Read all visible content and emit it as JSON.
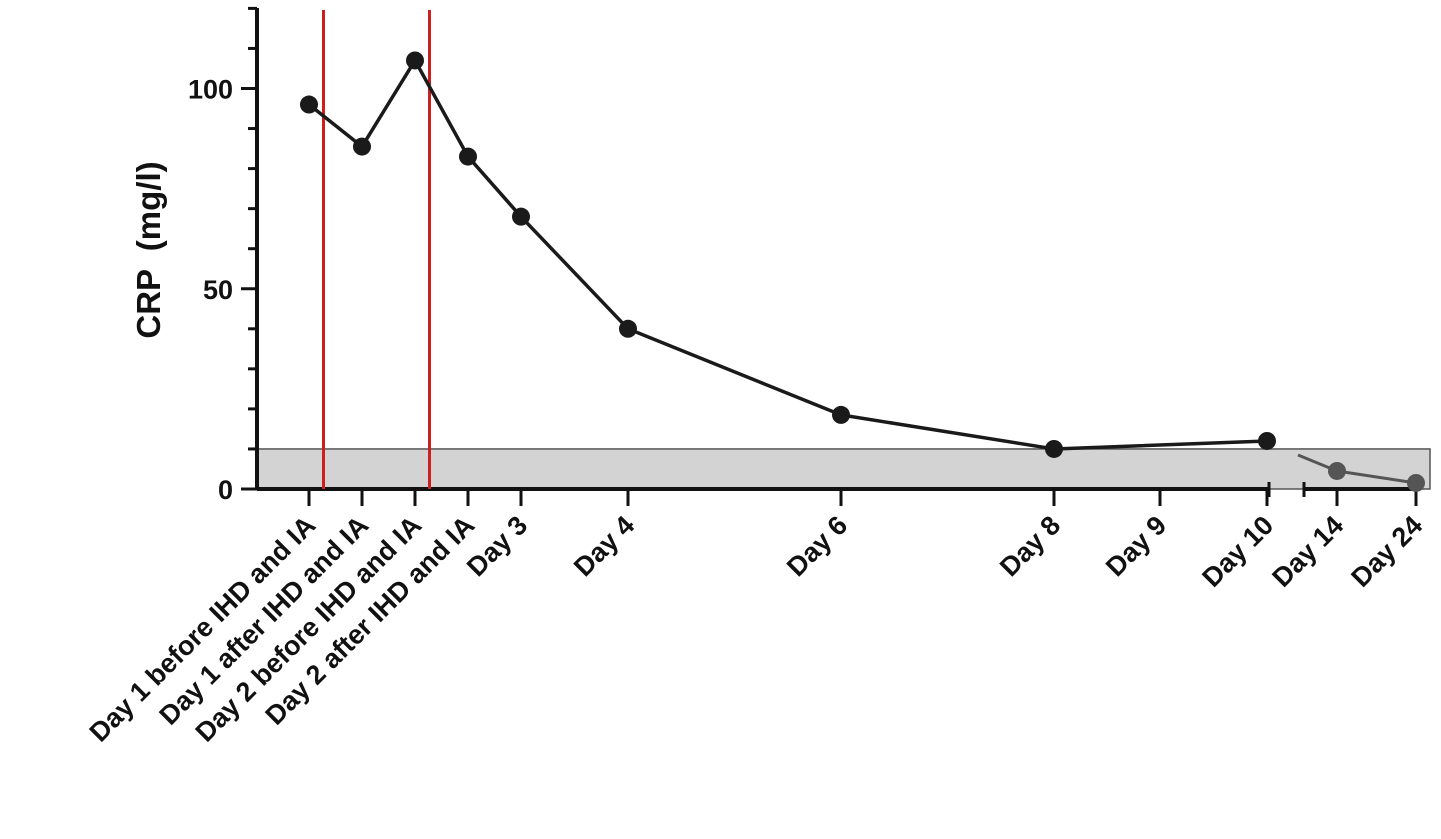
{
  "chart_data": {
    "type": "line",
    "title": "",
    "xlabel": "",
    "ylabel": "CRP  (mg/l)",
    "ylim": [
      0,
      120
    ],
    "yticks": [
      0,
      50,
      100
    ],
    "grid": false,
    "legend": "none",
    "categories": [
      "Day 1 before IHD and IA",
      "Day 1 after IHD and IA",
      "Day 2 before IHD and IA",
      "Day 2 after IHD and IA",
      "Day 3",
      "Day 4",
      "Day 6",
      "Day 8",
      "Day 9",
      "Day 10",
      "Day 14",
      "Day 24"
    ],
    "series": [
      {
        "values": [
          96,
          85.5,
          107,
          83,
          68,
          40,
          18.5,
          10,
          null,
          12,
          null,
          null
        ],
        "color": "#1a1a1a"
      },
      {
        "values": [
          null,
          null,
          null,
          null,
          null,
          null,
          null,
          null,
          null,
          null,
          4.5,
          1.5
        ],
        "color": "#555555"
      }
    ],
    "reference_band": {
      "from": 0,
      "to": 10,
      "color": "#d3d3d3"
    },
    "event_markers": {
      "color": "#cc1f1f",
      "between_categories": [
        [
          0,
          1
        ],
        [
          2,
          3
        ]
      ]
    }
  }
}
